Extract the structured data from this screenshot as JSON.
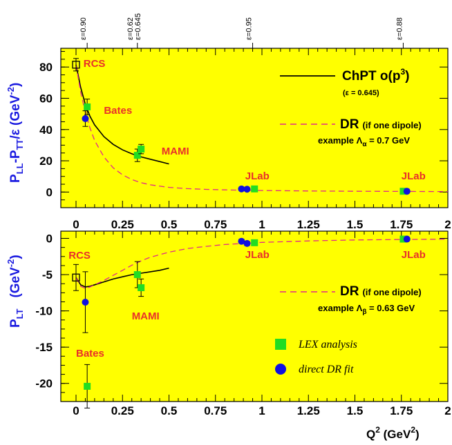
{
  "colors": {
    "panel": "#ffff00",
    "chpt": "#000000",
    "dr": "#e0288c",
    "lex": "#22dd22",
    "dr_fit": "#1010e0",
    "experiment_label": "#e8302a",
    "axis_label": "#1a1ae0"
  },
  "epsilon_markers": [
    {
      "x": 0.06,
      "label": "ε=0.90"
    },
    {
      "x": 0.33,
      "label": "ε=0.62"
    },
    {
      "x": 0.33,
      "label": "ε=0.645"
    },
    {
      "x": 0.95,
      "label": "ε=0.95"
    },
    {
      "x": 1.76,
      "label": "ε=0.88"
    }
  ],
  "chart_data": [
    {
      "type": "scatter",
      "panel": "top",
      "ylabel": "P_LL - P_TT/ε (GeV⁻²)",
      "ylabel_parts": {
        "a": "P",
        "a_sub": "LL",
        "b": "-P",
        "b_sub": "TT",
        "c": "/ε (GeV",
        "sup": "-2",
        "d": ")"
      },
      "xlim": [
        -0.08,
        2.0
      ],
      "ylim": [
        -10,
        92
      ],
      "x_ticks": [
        "0",
        "0.25",
        "0.5",
        "0.75",
        "1",
        "1.25",
        "1.5",
        "1.75",
        "2"
      ],
      "y_ticks": [
        0,
        20,
        40,
        60,
        80
      ],
      "annotations": [
        {
          "text": "RCS",
          "x": 0.04,
          "y": 80
        },
        {
          "text": "Bates",
          "x": 0.15,
          "y": 50
        },
        {
          "text": "MAMI",
          "x": 0.46,
          "y": 24
        },
        {
          "text": "JLab",
          "x": 0.91,
          "y": 8
        },
        {
          "text": "JLab",
          "x": 1.75,
          "y": 8
        }
      ],
      "legend": {
        "chpt_label": "ChPT o(p",
        "chpt_sup": "3",
        "chpt_close": ")",
        "chpt_note": "(ε = 0.645)",
        "dr_label": "DR",
        "dr_note": "(if one dipole)",
        "dr_example": "example Λ",
        "dr_example_sub": "α",
        "dr_example_val": " = 0.7 GeV"
      },
      "series": [
        {
          "name": "RCS",
          "marker": "open-square",
          "points": [
            {
              "x": 0.0,
              "y": 81.5,
              "err": 4
            }
          ]
        },
        {
          "name": "LEX analysis",
          "marker": "green-square",
          "points": [
            {
              "x": 0.06,
              "y": 54.5,
              "err": 5
            },
            {
              "x": 0.33,
              "y": 23.5,
              "err": 4
            },
            {
              "x": 0.35,
              "y": 27.5,
              "err": 3
            },
            {
              "x": 0.96,
              "y": 2,
              "err": 1
            },
            {
              "x": 1.76,
              "y": 0.5,
              "err": 0.8
            }
          ]
        },
        {
          "name": "direct DR fit",
          "marker": "blue-circle",
          "points": [
            {
              "x": 0.05,
              "y": 47,
              "err": 5
            },
            {
              "x": 0.89,
              "y": 2,
              "err": 0.5
            },
            {
              "x": 0.92,
              "y": 1.8,
              "err": 0.5
            },
            {
              "x": 1.78,
              "y": 0.5,
              "err": 0.5
            }
          ]
        },
        {
          "name": "ChPT o(p3)",
          "style": "solid",
          "x": [
            0,
            0.025,
            0.05,
            0.075,
            0.1,
            0.15,
            0.2,
            0.25,
            0.3,
            0.35,
            0.4,
            0.45,
            0.5
          ],
          "y": [
            81.5,
            67,
            56,
            48.5,
            43,
            35.5,
            30.5,
            27,
            24.5,
            22.5,
            21,
            19.5,
            18
          ]
        },
        {
          "name": "DR",
          "style": "dashed",
          "x": [
            0,
            0.025,
            0.05,
            0.075,
            0.1,
            0.15,
            0.2,
            0.25,
            0.3,
            0.35,
            0.4,
            0.5,
            0.6,
            0.7,
            0.8,
            1.0,
            1.25,
            1.5,
            1.75,
            2.0
          ],
          "y": [
            81.5,
            64,
            51,
            41,
            33,
            22.5,
            15.5,
            11,
            8,
            6,
            4.6,
            3,
            2.2,
            1.7,
            1.4,
            1.0,
            0.7,
            0.5,
            0.4,
            0.3
          ]
        }
      ]
    },
    {
      "type": "scatter",
      "panel": "bottom",
      "ylabel": "P_LT (GeV⁻²)",
      "ylabel_parts": {
        "a": "P",
        "a_sub": "LT",
        "c": "(GeV",
        "sup": "-2",
        "d": ")"
      },
      "xlabel": "Q² (GeV²)",
      "xlabel_parts": {
        "a": "Q",
        "sup": "2",
        "b": " (GeV",
        "sup2": "2",
        "c": ")"
      },
      "xlim": [
        -0.08,
        2.0
      ],
      "ylim": [
        -22.5,
        1.0
      ],
      "x_ticks": [
        "0",
        "0.25",
        "0.5",
        "0.75",
        "1",
        "1.25",
        "1.5",
        "1.75",
        "2"
      ],
      "y_ticks": [
        0,
        -5,
        -10,
        -15,
        -20
      ],
      "annotations": [
        {
          "text": "RCS",
          "x": -0.04,
          "y": -2.8
        },
        {
          "text": "MAMI",
          "x": 0.3,
          "y": -11.2
        },
        {
          "text": "Bates",
          "x": 0.0,
          "y": -16.3
        },
        {
          "text": "JLab",
          "x": 0.91,
          "y": -2.7
        },
        {
          "text": "JLab",
          "x": 1.75,
          "y": -2.7
        }
      ],
      "legend": {
        "dr_label": "DR",
        "dr_note": "(if one dipole)",
        "dr_example": "example Λ",
        "dr_example_sub": "β",
        "dr_example_val": " = 0.63 GeV",
        "lex": "LEX analysis",
        "fit": "direct DR fit"
      },
      "series": [
        {
          "name": "RCS",
          "marker": "open-square",
          "points": [
            {
              "x": 0.0,
              "y": -5.4,
              "err": 1.8
            }
          ]
        },
        {
          "name": "LEX analysis",
          "marker": "green-square",
          "points": [
            {
              "x": 0.06,
              "y": -20.4,
              "err": 3
            },
            {
              "x": 0.33,
              "y": -5.0,
              "err": 1.8
            },
            {
              "x": 0.35,
              "y": -6.8,
              "err": 1.2
            },
            {
              "x": 0.96,
              "y": -0.6,
              "err": 0.3
            },
            {
              "x": 1.76,
              "y": -0.1,
              "err": 0.2
            }
          ]
        },
        {
          "name": "direct DR fit",
          "marker": "blue-circle",
          "points": [
            {
              "x": 0.05,
              "y": -8.8,
              "err": 4.2
            },
            {
              "x": 0.89,
              "y": -0.4,
              "err": 0.3
            },
            {
              "x": 0.92,
              "y": -0.7,
              "err": 0.3
            },
            {
              "x": 1.78,
              "y": -0.1,
              "err": 0.2
            }
          ]
        },
        {
          "name": "ChPT o(p3)",
          "style": "solid",
          "x": [
            0,
            0.025,
            0.05,
            0.075,
            0.1,
            0.15,
            0.2,
            0.25,
            0.3,
            0.35,
            0.4,
            0.45,
            0.5
          ],
          "y": [
            -5.4,
            -6.4,
            -6.7,
            -6.6,
            -6.4,
            -6.0,
            -5.6,
            -5.3,
            -5.0,
            -4.8,
            -4.6,
            -4.4,
            -4.1
          ]
        },
        {
          "name": "DR",
          "style": "dashed",
          "x": [
            0,
            0.025,
            0.05,
            0.075,
            0.1,
            0.15,
            0.2,
            0.25,
            0.3,
            0.35,
            0.4,
            0.5,
            0.6,
            0.7,
            0.8,
            1.0,
            1.25,
            1.5,
            1.75,
            2.0
          ],
          "y": [
            -5.4,
            -6.6,
            -6.9,
            -6.7,
            -6.4,
            -5.8,
            -5.1,
            -4.4,
            -3.7,
            -3.1,
            -2.6,
            -1.9,
            -1.4,
            -1.1,
            -0.85,
            -0.55,
            -0.35,
            -0.22,
            -0.15,
            -0.1
          ]
        }
      ]
    }
  ]
}
